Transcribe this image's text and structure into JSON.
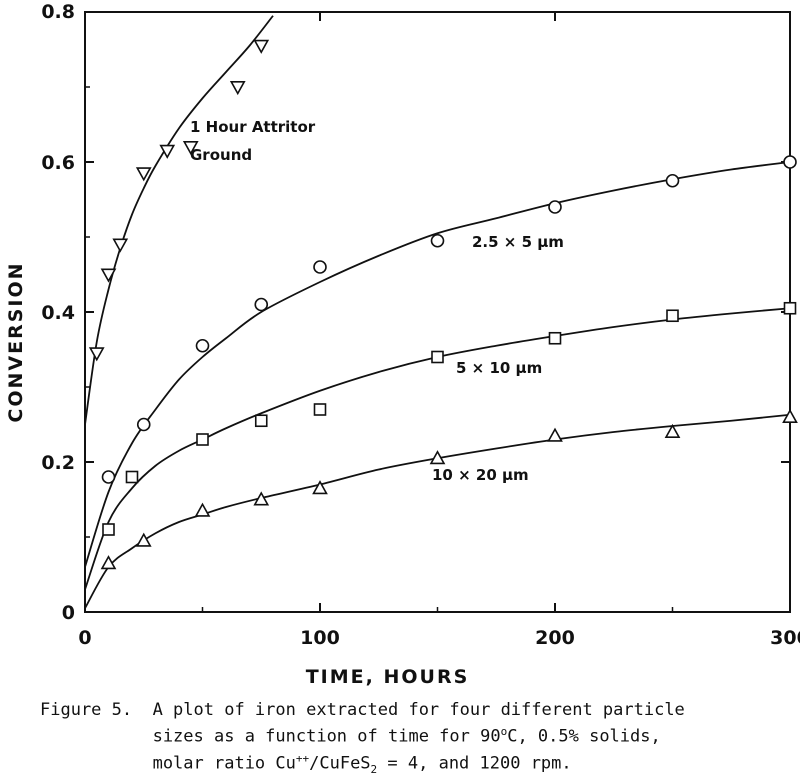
{
  "chart_data": {
    "type": "scatter",
    "xlabel": "TIME, HOURS",
    "ylabel": "CONVERSION",
    "xlim": [
      0,
      300
    ],
    "ylim": [
      0,
      0.8
    ],
    "x_ticks": [
      "0",
      "100",
      "200",
      "300"
    ],
    "y_ticks": [
      "0",
      "0.2",
      "0.4",
      "0.6",
      "0.8"
    ],
    "grid": false,
    "series": [
      {
        "name": "1 Hour Attritor Ground",
        "label_line1": "1 Hour Attritor",
        "label_line2": "Ground",
        "marker": "triangle-down",
        "points": [
          [
            5,
            0.345
          ],
          [
            10,
            0.45
          ],
          [
            15,
            0.49
          ],
          [
            25,
            0.585
          ],
          [
            35,
            0.615
          ],
          [
            45,
            0.62
          ],
          [
            65,
            0.7
          ],
          [
            75,
            0.755
          ]
        ],
        "curve": [
          [
            0,
            0.25
          ],
          [
            5,
            0.36
          ],
          [
            10,
            0.43
          ],
          [
            15,
            0.485
          ],
          [
            20,
            0.53
          ],
          [
            25,
            0.565
          ],
          [
            30,
            0.595
          ],
          [
            40,
            0.645
          ],
          [
            50,
            0.685
          ],
          [
            60,
            0.72
          ],
          [
            70,
            0.755
          ],
          [
            80,
            0.795
          ]
        ]
      },
      {
        "name": "2.5 × 5 μm",
        "label": "2.5 × 5 μm",
        "marker": "circle",
        "points": [
          [
            10,
            0.18
          ],
          [
            25,
            0.25
          ],
          [
            50,
            0.355
          ],
          [
            75,
            0.41
          ],
          [
            100,
            0.46
          ],
          [
            150,
            0.495
          ],
          [
            200,
            0.54
          ],
          [
            250,
            0.575
          ],
          [
            300,
            0.6
          ]
        ],
        "curve": [
          [
            0,
            0.06
          ],
          [
            10,
            0.16
          ],
          [
            20,
            0.225
          ],
          [
            30,
            0.27
          ],
          [
            40,
            0.31
          ],
          [
            50,
            0.34
          ],
          [
            60,
            0.365
          ],
          [
            75,
            0.4
          ],
          [
            100,
            0.44
          ],
          [
            125,
            0.475
          ],
          [
            150,
            0.505
          ],
          [
            175,
            0.525
          ],
          [
            200,
            0.545
          ],
          [
            225,
            0.562
          ],
          [
            250,
            0.577
          ],
          [
            275,
            0.59
          ],
          [
            300,
            0.6
          ]
        ]
      },
      {
        "name": "5 × 10 μm",
        "label": "5 × 10 μm",
        "marker": "square",
        "points": [
          [
            10,
            0.11
          ],
          [
            20,
            0.18
          ],
          [
            50,
            0.23
          ],
          [
            75,
            0.255
          ],
          [
            100,
            0.27
          ],
          [
            150,
            0.34
          ],
          [
            200,
            0.365
          ],
          [
            250,
            0.395
          ],
          [
            300,
            0.405
          ]
        ],
        "curve": [
          [
            0,
            0.03
          ],
          [
            10,
            0.12
          ],
          [
            20,
            0.165
          ],
          [
            30,
            0.195
          ],
          [
            40,
            0.215
          ],
          [
            50,
            0.23
          ],
          [
            60,
            0.245
          ],
          [
            75,
            0.265
          ],
          [
            100,
            0.295
          ],
          [
            125,
            0.32
          ],
          [
            150,
            0.34
          ],
          [
            175,
            0.355
          ],
          [
            200,
            0.368
          ],
          [
            225,
            0.38
          ],
          [
            250,
            0.39
          ],
          [
            275,
            0.398
          ],
          [
            300,
            0.405
          ]
        ]
      },
      {
        "name": "10 × 20 μm",
        "label": "10 × 20 μm",
        "marker": "triangle-up",
        "points": [
          [
            10,
            0.065
          ],
          [
            25,
            0.095
          ],
          [
            50,
            0.135
          ],
          [
            75,
            0.15
          ],
          [
            100,
            0.165
          ],
          [
            150,
            0.205
          ],
          [
            200,
            0.235
          ],
          [
            250,
            0.24
          ],
          [
            300,
            0.26
          ]
        ],
        "curve": [
          [
            0,
            0.005
          ],
          [
            10,
            0.06
          ],
          [
            20,
            0.085
          ],
          [
            30,
            0.105
          ],
          [
            40,
            0.12
          ],
          [
            50,
            0.13
          ],
          [
            60,
            0.14
          ],
          [
            75,
            0.152
          ],
          [
            100,
            0.17
          ],
          [
            125,
            0.19
          ],
          [
            150,
            0.205
          ],
          [
            175,
            0.218
          ],
          [
            200,
            0.23
          ],
          [
            225,
            0.24
          ],
          [
            250,
            0.248
          ],
          [
            275,
            0.255
          ],
          [
            300,
            0.263
          ]
        ]
      }
    ]
  },
  "caption": {
    "line1_prefix": "Figure 5.  A plot of iron extracted for four different particle",
    "line2_prefix": "           sizes as a function of time for 90",
    "line2_sup": "o",
    "line2_suffix": "C, 0.5% solids,",
    "line3_prefix": "           molar ratio Cu",
    "line3_sup": "++",
    "line3_mid": "/CuFeS",
    "line3_sub": "2",
    "line3_suffix": " = 4, and 1200 rpm."
  }
}
